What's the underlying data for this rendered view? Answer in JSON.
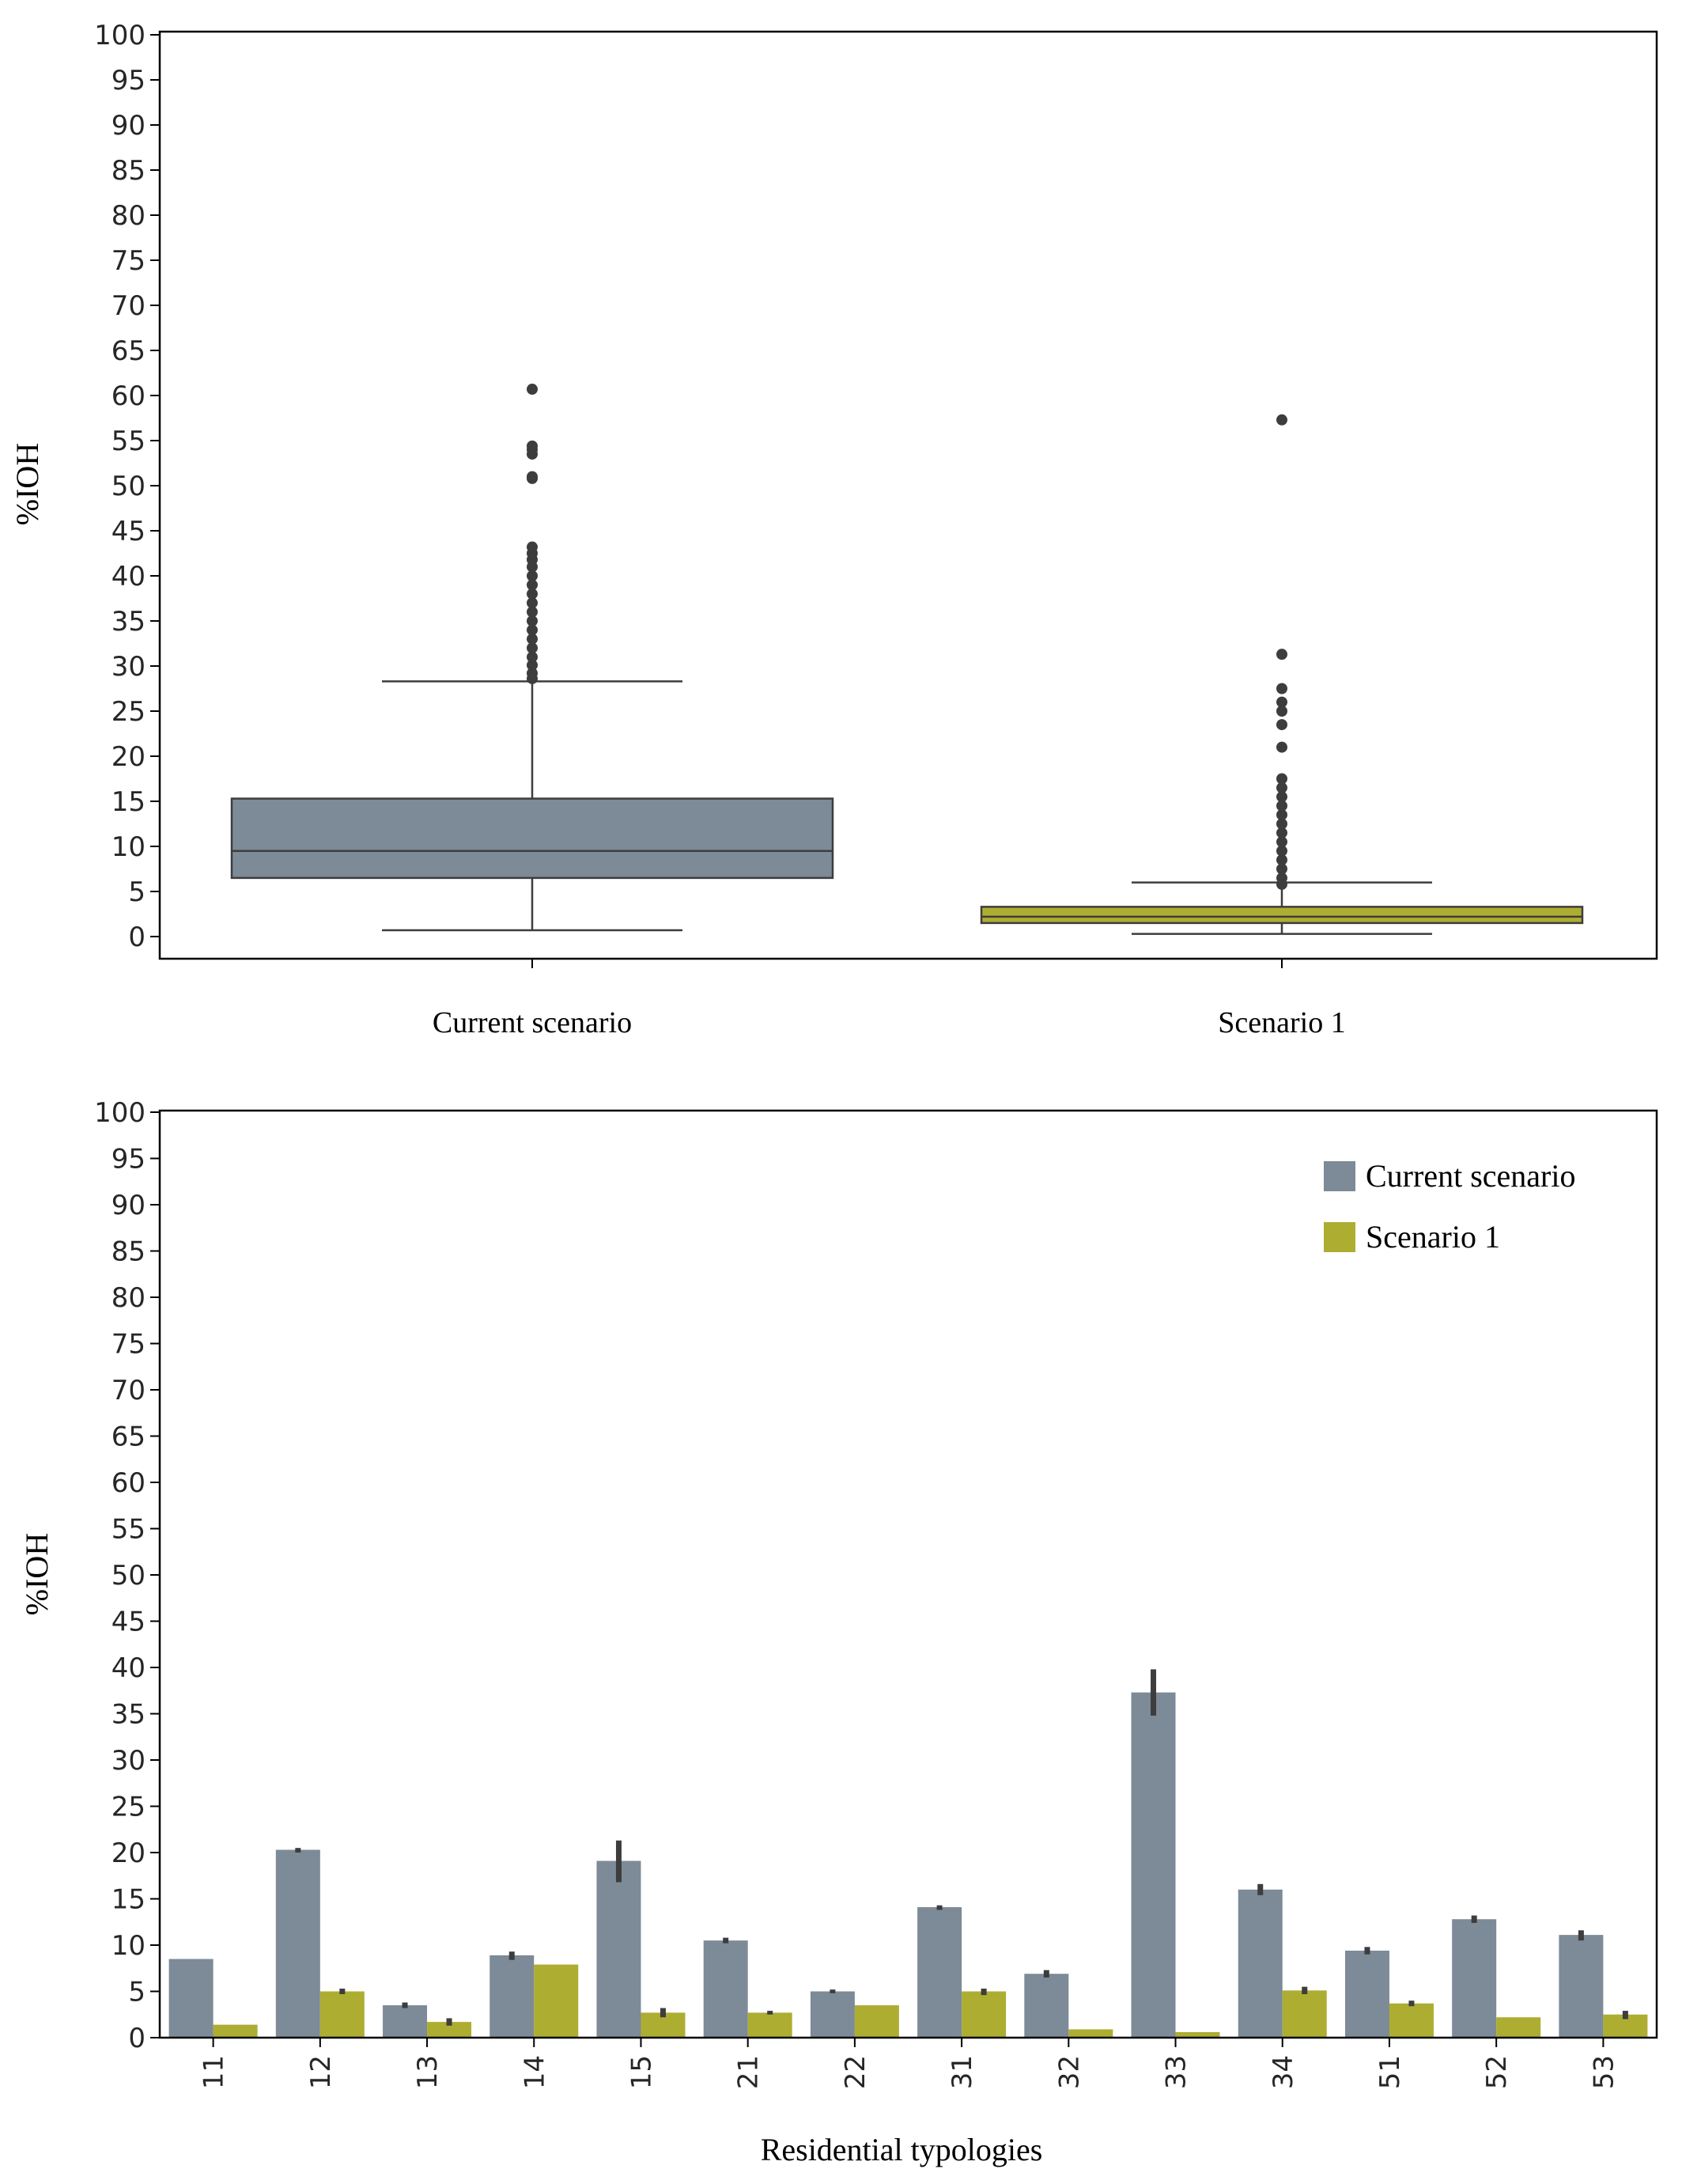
{
  "colors": {
    "current": "#7d8a97",
    "scenario1": "#adad32",
    "dark": "#3d3d3d"
  },
  "chart_data": [
    {
      "type": "box",
      "title": "",
      "xlabel": "",
      "ylabel": "%IOH",
      "ylim": [
        0,
        100
      ],
      "yticks": [
        "0",
        "5",
        "10",
        "15",
        "20",
        "25",
        "30",
        "35",
        "40",
        "45",
        "50",
        "55",
        "60",
        "65",
        "70",
        "75",
        "80",
        "85",
        "90",
        "95",
        "100"
      ],
      "categories": [
        "Current scenario",
        "Scenario 1"
      ],
      "boxes": [
        {
          "name": "Current scenario",
          "whisker_low": 0.7,
          "q1": 6.5,
          "median": 9.5,
          "q3": 15.3,
          "whisker_high": 28.3,
          "outliers": [
            28.6,
            29.2,
            30.1,
            31.0,
            32.0,
            33.0,
            34.0,
            35.0,
            36.0,
            37.0,
            38.0,
            39.0,
            40.0,
            41.0,
            41.8,
            42.5,
            43.2,
            50.8,
            51.0,
            53.5,
            54.0,
            54.4,
            60.7
          ]
        },
        {
          "name": "Scenario 1",
          "whisker_low": 0.3,
          "q1": 1.5,
          "median": 2.2,
          "q3": 3.3,
          "whisker_high": 6.0,
          "outliers": [
            5.8,
            6.5,
            7.5,
            8.5,
            9.5,
            10.5,
            11.5,
            12.5,
            13.5,
            14.5,
            15.5,
            16.5,
            17.5,
            21.0,
            23.5,
            25.0,
            26.0,
            27.5,
            31.3,
            57.3
          ]
        }
      ]
    },
    {
      "type": "bar",
      "title": "",
      "xlabel": "Residential typologies",
      "ylabel": "%IOH",
      "ylim": [
        0,
        100
      ],
      "yticks": [
        "0",
        "5",
        "10",
        "15",
        "20",
        "25",
        "30",
        "35",
        "40",
        "45",
        "50",
        "55",
        "60",
        "65",
        "70",
        "75",
        "80",
        "85",
        "90",
        "95",
        "100"
      ],
      "categories": [
        "11",
        "12",
        "13",
        "14",
        "15",
        "21",
        "22",
        "31",
        "32",
        "33",
        "34",
        "51",
        "52",
        "53"
      ],
      "series": [
        {
          "name": "Current scenario",
          "values": [
            8.5,
            20.3,
            3.5,
            8.9,
            19.1,
            10.5,
            5.0,
            14.1,
            6.9,
            37.3,
            16.0,
            9.4,
            12.8,
            11.1
          ],
          "err_low": [
            8.5,
            20.0,
            3.2,
            8.4,
            16.8,
            10.2,
            4.8,
            13.8,
            6.5,
            34.8,
            15.4,
            9.0,
            12.4,
            10.5
          ],
          "err_high": [
            8.5,
            20.5,
            3.8,
            9.3,
            21.3,
            10.8,
            5.2,
            14.3,
            7.3,
            39.8,
            16.6,
            9.8,
            13.2,
            11.6
          ]
        },
        {
          "name": "Scenario 1",
          "values": [
            1.4,
            5.0,
            1.7,
            7.9,
            2.7,
            2.7,
            3.5,
            5.0,
            0.9,
            0.6,
            5.1,
            3.7,
            2.2,
            2.5
          ],
          "err_low": [
            1.4,
            4.7,
            1.3,
            7.9,
            2.2,
            2.5,
            3.5,
            4.6,
            0.9,
            0.6,
            4.7,
            3.4,
            2.2,
            2.0
          ],
          "err_high": [
            1.4,
            5.3,
            2.1,
            7.9,
            3.2,
            2.9,
            3.5,
            5.3,
            0.9,
            0.6,
            5.5,
            4.0,
            2.2,
            2.9
          ]
        }
      ],
      "legend": [
        "Current scenario",
        "Scenario 1"
      ],
      "legend_position": "top-right"
    }
  ]
}
